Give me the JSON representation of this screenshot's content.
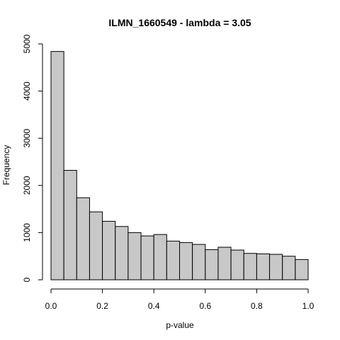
{
  "chart_data": {
    "type": "bar",
    "title": "ILMN_1660549 - lambda = 3.05",
    "xlabel": "p-value",
    "ylabel": "Frequency",
    "xlim": [
      0,
      1
    ],
    "ylim": [
      0,
      5000
    ],
    "bin_width": 0.05,
    "bins": [
      0.0,
      0.05,
      0.1,
      0.15,
      0.2,
      0.25,
      0.3,
      0.35,
      0.4,
      0.45,
      0.5,
      0.55,
      0.6,
      0.65,
      0.7,
      0.75,
      0.8,
      0.85,
      0.9,
      0.95
    ],
    "values": [
      4840,
      2320,
      1740,
      1440,
      1240,
      1130,
      1000,
      930,
      960,
      820,
      790,
      750,
      640,
      690,
      630,
      560,
      550,
      540,
      500,
      430
    ],
    "x_ticks": [
      0,
      0.2,
      0.4,
      0.6,
      0.8,
      1
    ],
    "x_tick_labels": [
      "0.0",
      "0.2",
      "0.4",
      "0.6",
      "0.8",
      "1.0"
    ],
    "y_ticks": [
      0,
      1000,
      2000,
      3000,
      4000,
      5000
    ],
    "y_tick_labels": [
      "0",
      "1000",
      "2000",
      "3000",
      "4000",
      "5000"
    ],
    "bar_color": "#c8c8c8",
    "grid": false,
    "legend": "none"
  }
}
